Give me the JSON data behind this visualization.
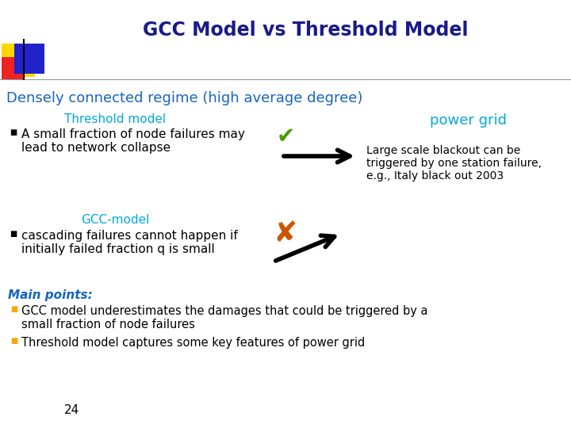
{
  "title": "GCC Model vs Threshold Model",
  "title_color": "#1A1A8C",
  "title_fontsize": 17,
  "subtitle": "Densely connected regime (high average degree)",
  "subtitle_color": "#1565C0",
  "subtitle_fontsize": 13,
  "threshold_label": "Threshold model",
  "threshold_color": "#00AADD",
  "gcc_label": "GCC-model",
  "gcc_color": "#00AADD",
  "power_grid_label": "power grid",
  "power_grid_color": "#00AADD",
  "threshold_bullet": "A small fraction of node failures may\nlead to network collapse",
  "gcc_bullet": "cascading failures cannot happen if\ninitially failed fraction q is small",
  "right_text": "Large scale blackout can be\ntriggered by one station failure,\ne.g., Italy black out 2003",
  "main_points_label": "Main points:",
  "main_points_color": "#1565C0",
  "bullet1": "GCC model underestimates the damages that could be triggered by a\nsmall fraction of node failures",
  "bullet2": "Threshold model captures some key features of power grid",
  "bullet_color": "#FFA500",
  "page_num": "24",
  "bg_color": "#FFFFFF",
  "text_color": "#000000",
  "checkmark_color": "#4A9A00",
  "cross_color": "#CC5500",
  "arrow_color": "#000000",
  "line_color": "#999999",
  "yellow_color": "#FFD700",
  "red_color": "#EE2222",
  "blue_color": "#2222CC"
}
